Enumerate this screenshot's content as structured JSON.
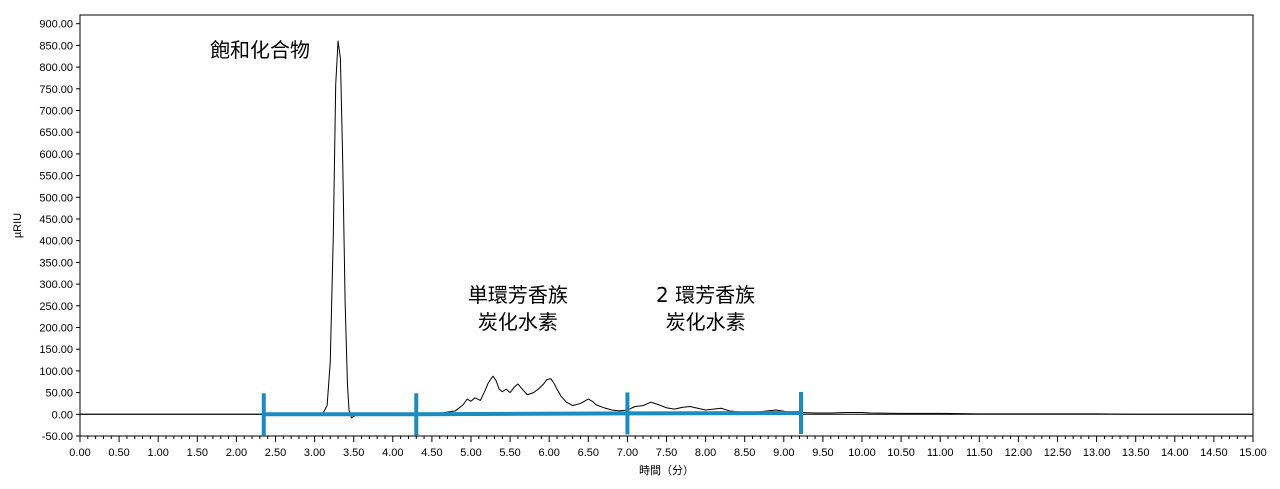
{
  "chart_data": {
    "type": "line",
    "title": "",
    "xlabel": "時間（分）",
    "ylabel": "µRIU",
    "xlim": [
      0,
      15
    ],
    "ylim": [
      -50,
      920
    ],
    "x_ticks": [
      "0.00",
      "0.50",
      "1.00",
      "1.50",
      "2.00",
      "2.50",
      "3.00",
      "3.50",
      "4.00",
      "4.50",
      "5.00",
      "5.50",
      "6.00",
      "6.50",
      "7.00",
      "7.50",
      "8.00",
      "8.50",
      "9.00",
      "9.50",
      "10.00",
      "10.50",
      "11.00",
      "11.50",
      "12.00",
      "12.50",
      "13.00",
      "13.50",
      "14.00",
      "14.50",
      "15.00"
    ],
    "y_ticks": [
      "-50.00",
      "0.00",
      "50.00",
      "100.00",
      "150.00",
      "200.00",
      "250.00",
      "300.00",
      "350.00",
      "400.00",
      "450.00",
      "500.00",
      "550.00",
      "600.00",
      "650.00",
      "700.00",
      "750.00",
      "800.00",
      "850.00",
      "900.00"
    ],
    "series": [
      {
        "color": "#000000",
        "x": [
          0.0,
          3.0,
          3.1,
          3.16,
          3.2,
          3.24,
          3.27,
          3.3,
          3.33,
          3.36,
          3.39,
          3.42,
          3.44,
          3.47,
          3.52,
          3.6,
          4.0,
          4.6,
          4.8,
          4.9,
          4.95,
          5.0,
          5.05,
          5.12,
          5.18,
          5.22,
          5.28,
          5.32,
          5.36,
          5.4,
          5.45,
          5.5,
          5.55,
          5.6,
          5.67,
          5.72,
          5.8,
          5.86,
          5.92,
          5.97,
          6.02,
          6.06,
          6.1,
          6.15,
          6.22,
          6.3,
          6.4,
          6.5,
          6.55,
          6.6,
          6.7,
          6.8,
          6.9,
          7.0,
          7.1,
          7.2,
          7.3,
          7.4,
          7.5,
          7.6,
          7.7,
          7.8,
          7.9,
          8.0,
          8.1,
          8.2,
          8.3,
          8.4,
          8.5,
          8.6,
          8.7,
          8.8,
          8.9,
          9.0,
          9.1,
          9.2,
          9.4,
          9.6,
          9.8,
          10.0,
          10.1,
          10.5,
          11.0,
          11.5,
          12.0,
          12.5,
          13.0,
          13.5,
          14.0,
          14.5,
          15.0
        ],
        "values": [
          0,
          0,
          0,
          20,
          120,
          420,
          760,
          860,
          820,
          580,
          260,
          70,
          10,
          -8,
          -3,
          0,
          0,
          2,
          8,
          22,
          35,
          30,
          38,
          32,
          55,
          72,
          88,
          78,
          58,
          52,
          58,
          50,
          62,
          70,
          55,
          45,
          50,
          58,
          68,
          80,
          82,
          72,
          58,
          42,
          28,
          20,
          25,
          35,
          30,
          22,
          15,
          10,
          8,
          10,
          18,
          20,
          28,
          22,
          15,
          12,
          16,
          18,
          14,
          10,
          12,
          14,
          8,
          6,
          5,
          5,
          6,
          8,
          10,
          7,
          5,
          4,
          3,
          3,
          4,
          4,
          3,
          2,
          2,
          1,
          1,
          1,
          1,
          0,
          0,
          0,
          0
        ]
      }
    ],
    "integration_markers": {
      "color": "#1a8cbf",
      "x": [
        2.35,
        4.3,
        7.0,
        9.22
      ],
      "baseline_y": [
        0,
        0,
        2,
        3
      ]
    },
    "annotations": [
      {
        "lines": [
          "飽和化合物"
        ],
        "x": 3.3
      },
      {
        "lines": [
          "単環芳香族",
          "炭化水素"
        ],
        "x": 5.6
      },
      {
        "lines": [
          "2 環芳香族",
          "炭化水素"
        ],
        "x": 8.0
      }
    ]
  }
}
